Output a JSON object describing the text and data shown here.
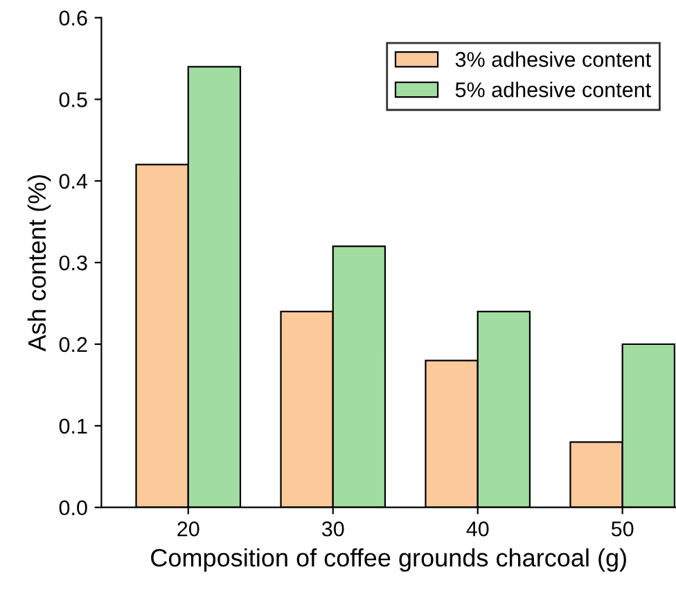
{
  "chart_data": {
    "type": "bar",
    "xlabel": "Composition of coffee grounds charcoal (g)",
    "ylabel": "Ash content (%)",
    "categories": [
      "20",
      "30",
      "40",
      "50"
    ],
    "series": [
      {
        "name": "3% adhesive content",
        "color": "#fcc99b",
        "values": [
          0.42,
          0.24,
          0.18,
          0.08
        ]
      },
      {
        "name": "5% adhesive content",
        "color": "#a1dca1",
        "values": [
          0.54,
          0.32,
          0.24,
          0.2
        ]
      }
    ],
    "ylim": [
      0,
      0.6
    ],
    "yticks": [
      {
        "value": 0,
        "label": "0.0"
      },
      0.1,
      0.2,
      0.3,
      0.4,
      0.5,
      0.6
    ],
    "legend": "top right",
    "grid": false
  }
}
